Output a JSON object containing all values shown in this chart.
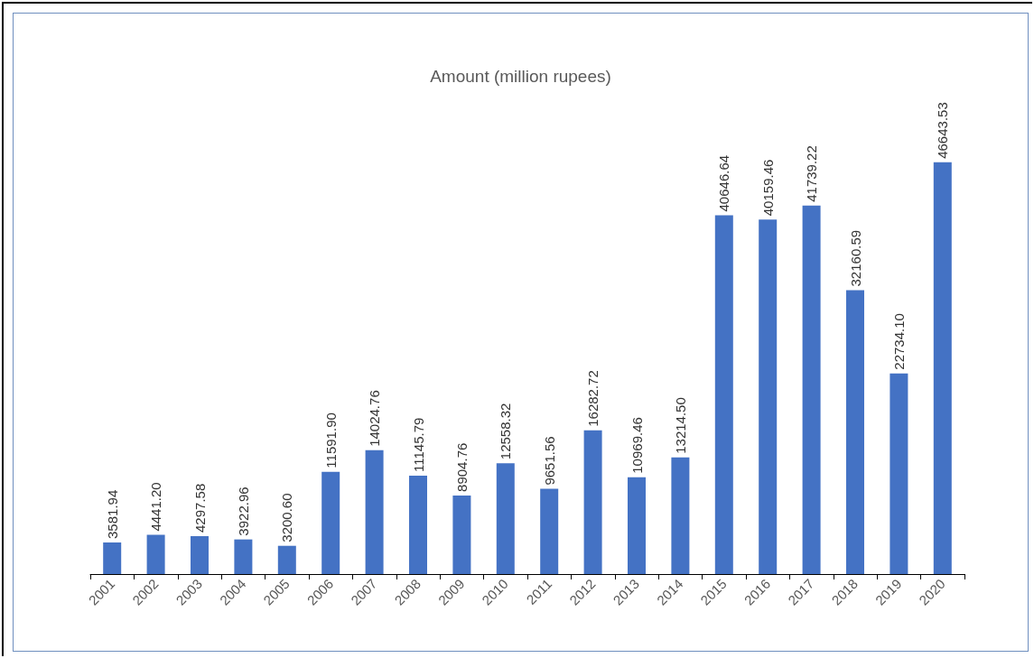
{
  "chart_data": {
    "type": "bar",
    "title": "Amount (million rupees)",
    "categories": [
      "2001",
      "2002",
      "2003",
      "2004",
      "2005",
      "2006",
      "2007",
      "2008",
      "2009",
      "2010",
      "2011",
      "2012",
      "2013",
      "2014",
      "2015",
      "2016",
      "2017",
      "2018",
      "2019",
      "2020"
    ],
    "values": [
      3581.94,
      4441.2,
      4297.58,
      3922.96,
      3200.6,
      11591.9,
      14024.76,
      11145.79,
      8904.76,
      12558.32,
      9651.56,
      16282.72,
      10969.46,
      13214.5,
      40646.64,
      40159.46,
      41739.22,
      32160.59,
      22734.1,
      46643.53
    ],
    "value_labels": [
      "3581.94",
      "4441.20",
      "4297.58",
      "3922.96",
      "3200.60",
      "11591.90",
      "14024.76",
      "11145.79",
      "8904.76",
      "12558.32",
      "9651.56",
      "16282.72",
      "10969.46",
      "13214.50",
      "40646.64",
      "40159.46",
      "41739.22",
      "32160.59",
      "22734.10",
      "46643.53"
    ],
    "color": "#4472c4"
  }
}
